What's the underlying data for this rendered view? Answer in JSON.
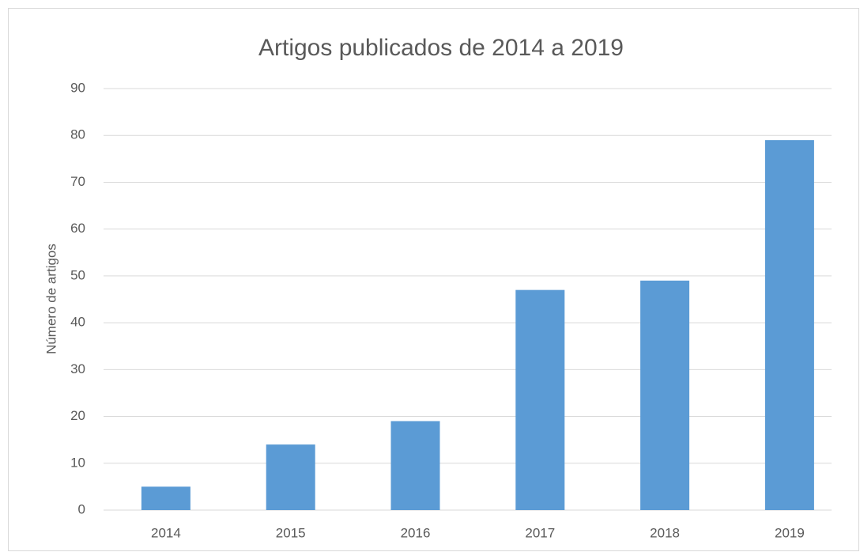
{
  "chart_data": {
    "type": "bar",
    "title": "Artigos publicados de 2014 a 2019",
    "y_label": "Número de artigos",
    "categories": [
      "2014",
      "2015",
      "2016",
      "2017",
      "2018",
      "2019"
    ],
    "values": [
      5,
      14,
      19,
      47,
      49,
      79
    ],
    "color": "#5b9bd5",
    "ylim": [
      0,
      90
    ],
    "yticks": [
      0,
      10,
      20,
      30,
      40,
      50,
      60,
      70,
      80,
      90
    ],
    "grid": true
  }
}
